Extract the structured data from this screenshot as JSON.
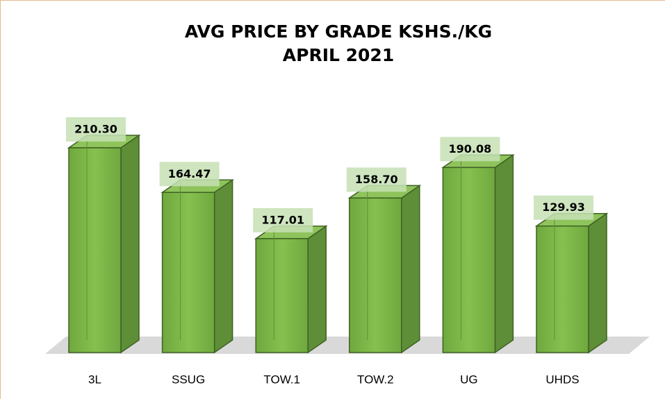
{
  "chart_data": {
    "type": "bar3d",
    "title": "AVG PRICE BY GRADE KSHS./KG",
    "subtitle": "APRIL 2021",
    "categories": [
      "3L",
      "SSUG",
      "TOW.1",
      "TOW.2",
      "UG",
      "UHDS"
    ],
    "values": [
      210.3,
      164.47,
      117.01,
      158.7,
      190.08,
      129.93
    ],
    "value_labels": [
      "210.30",
      "164.47",
      "117.01",
      "158.70",
      "190.08",
      "129.93"
    ],
    "color": "#7ab648"
  }
}
